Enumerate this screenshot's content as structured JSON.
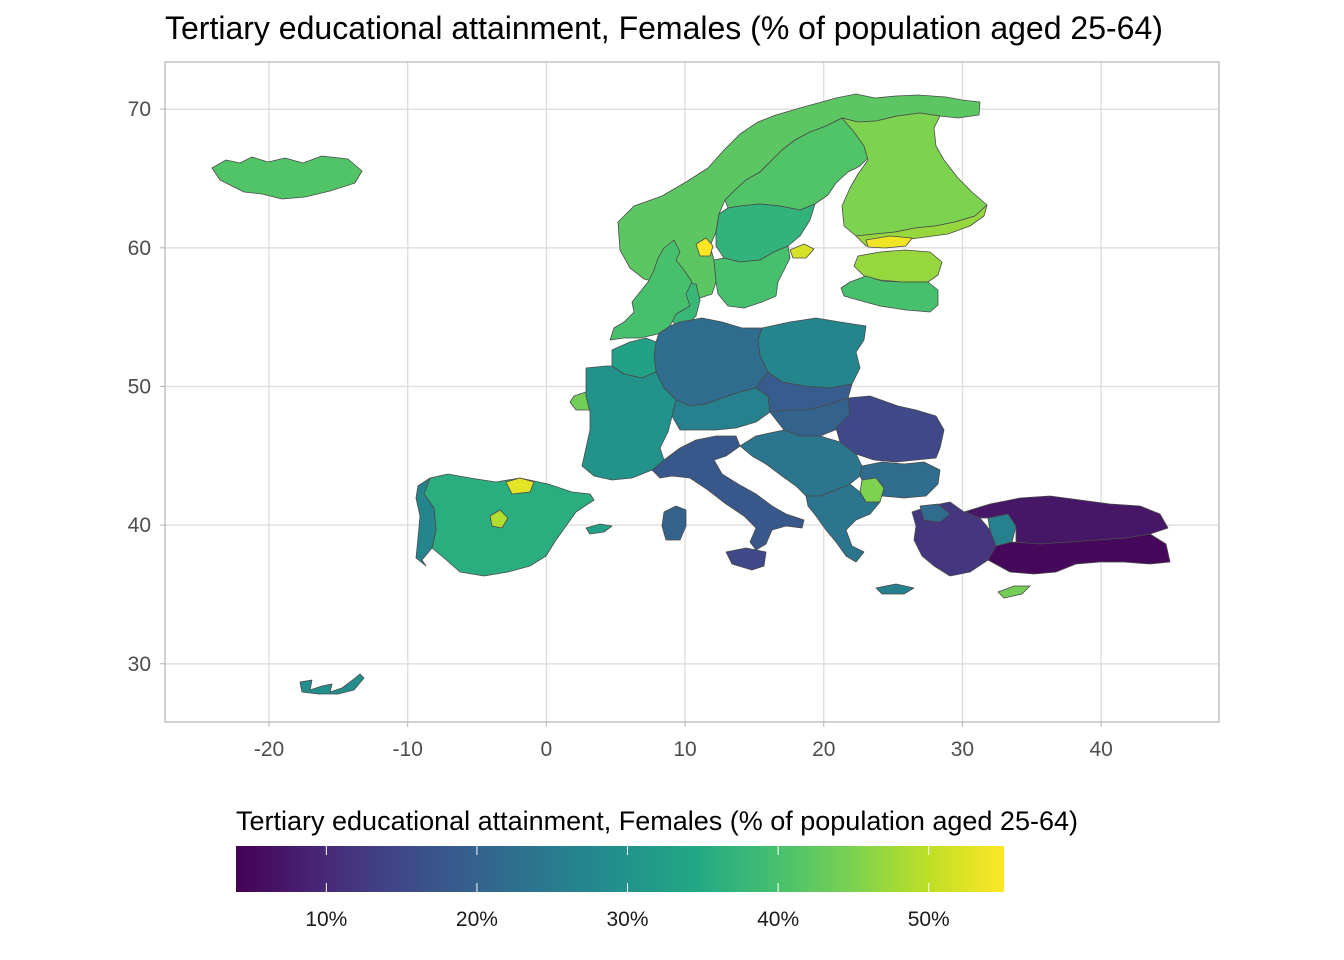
{
  "title": "Tertiary educational attainment, Females (% of population aged 25-64)",
  "chart_data": {
    "type": "choropleth map",
    "title": "Tertiary educational attainment, Females (% of population aged 25-64)",
    "x_axis": {
      "label": "",
      "ticks": [
        -20,
        -10,
        0,
        10,
        20,
        30,
        40
      ],
      "tick_labels": [
        "-20",
        "-10",
        "0",
        "10",
        "20",
        "30",
        "40"
      ],
      "range": [
        -27.5,
        48.5
      ]
    },
    "y_axis": {
      "label": "",
      "ticks": [
        30,
        40,
        50,
        60,
        70
      ],
      "tick_labels": [
        "30",
        "40",
        "50",
        "60",
        "70"
      ],
      "range": [
        25.8,
        73.4
      ]
    },
    "grid": true,
    "legend": {
      "title": "Tertiary educational attainment, Females (% of population aged 25-64)",
      "position": "bottom",
      "colormap": "viridis",
      "range": [
        4,
        55
      ],
      "ticks": [
        10,
        20,
        30,
        40,
        50
      ],
      "tick_labels": [
        "10%",
        "20%",
        "30%",
        "40%",
        "50%"
      ]
    },
    "regions": [
      {
        "name": "Iceland",
        "value": 41
      },
      {
        "name": "Norway",
        "value": 42
      },
      {
        "name": "Oslo",
        "value": 55
      },
      {
        "name": "Sweden north",
        "value": 41
      },
      {
        "name": "Sweden central",
        "value": 37
      },
      {
        "name": "Stockholm",
        "value": 52
      },
      {
        "name": "Sweden south",
        "value": 40
      },
      {
        "name": "Finland north",
        "value": 45
      },
      {
        "name": "Finland south",
        "value": 47
      },
      {
        "name": "Helsinki",
        "value": 54
      },
      {
        "name": "Estonia",
        "value": 47
      },
      {
        "name": "Latvia and Lithuania",
        "value": 40
      },
      {
        "name": "Denmark",
        "value": 38
      },
      {
        "name": "Poland",
        "value": 27
      },
      {
        "name": "Germany",
        "value": 22
      },
      {
        "name": "Netherlands and Belgium",
        "value": 33
      },
      {
        "name": "United Kingdom",
        "value": 40
      },
      {
        "name": "Ireland",
        "value": 44
      },
      {
        "name": "France",
        "value": 30
      },
      {
        "name": "Alpine region",
        "value": 26
      },
      {
        "name": "Czechia and Slovakia",
        "value": 19
      },
      {
        "name": "Hungary",
        "value": 20
      },
      {
        "name": "Romania",
        "value": 15
      },
      {
        "name": "Bulgaria",
        "value": 22
      },
      {
        "name": "Sofia",
        "value": 45
      },
      {
        "name": "Italy",
        "value": 18
      },
      {
        "name": "Sardinia",
        "value": 20
      },
      {
        "name": "Sicily",
        "value": 15
      },
      {
        "name": "Western Balkans",
        "value": 24
      },
      {
        "name": "Greece",
        "value": 24
      },
      {
        "name": "Crete",
        "value": 26
      },
      {
        "name": "Spain",
        "value": 36
      },
      {
        "name": "Madrid",
        "value": 49
      },
      {
        "name": "Basque Country",
        "value": 53
      },
      {
        "name": "Portugal",
        "value": 27
      },
      {
        "name": "Balearic Islands",
        "value": 33
      },
      {
        "name": "Canary Islands",
        "value": 29
      },
      {
        "name": "Turkey west",
        "value": 12
      },
      {
        "name": "Istanbul",
        "value": 22
      },
      {
        "name": "Ankara",
        "value": 26
      },
      {
        "name": "Turkey east",
        "value": 7
      },
      {
        "name": "Turkey southeast",
        "value": 5
      },
      {
        "name": "Cyprus",
        "value": 44
      }
    ]
  }
}
